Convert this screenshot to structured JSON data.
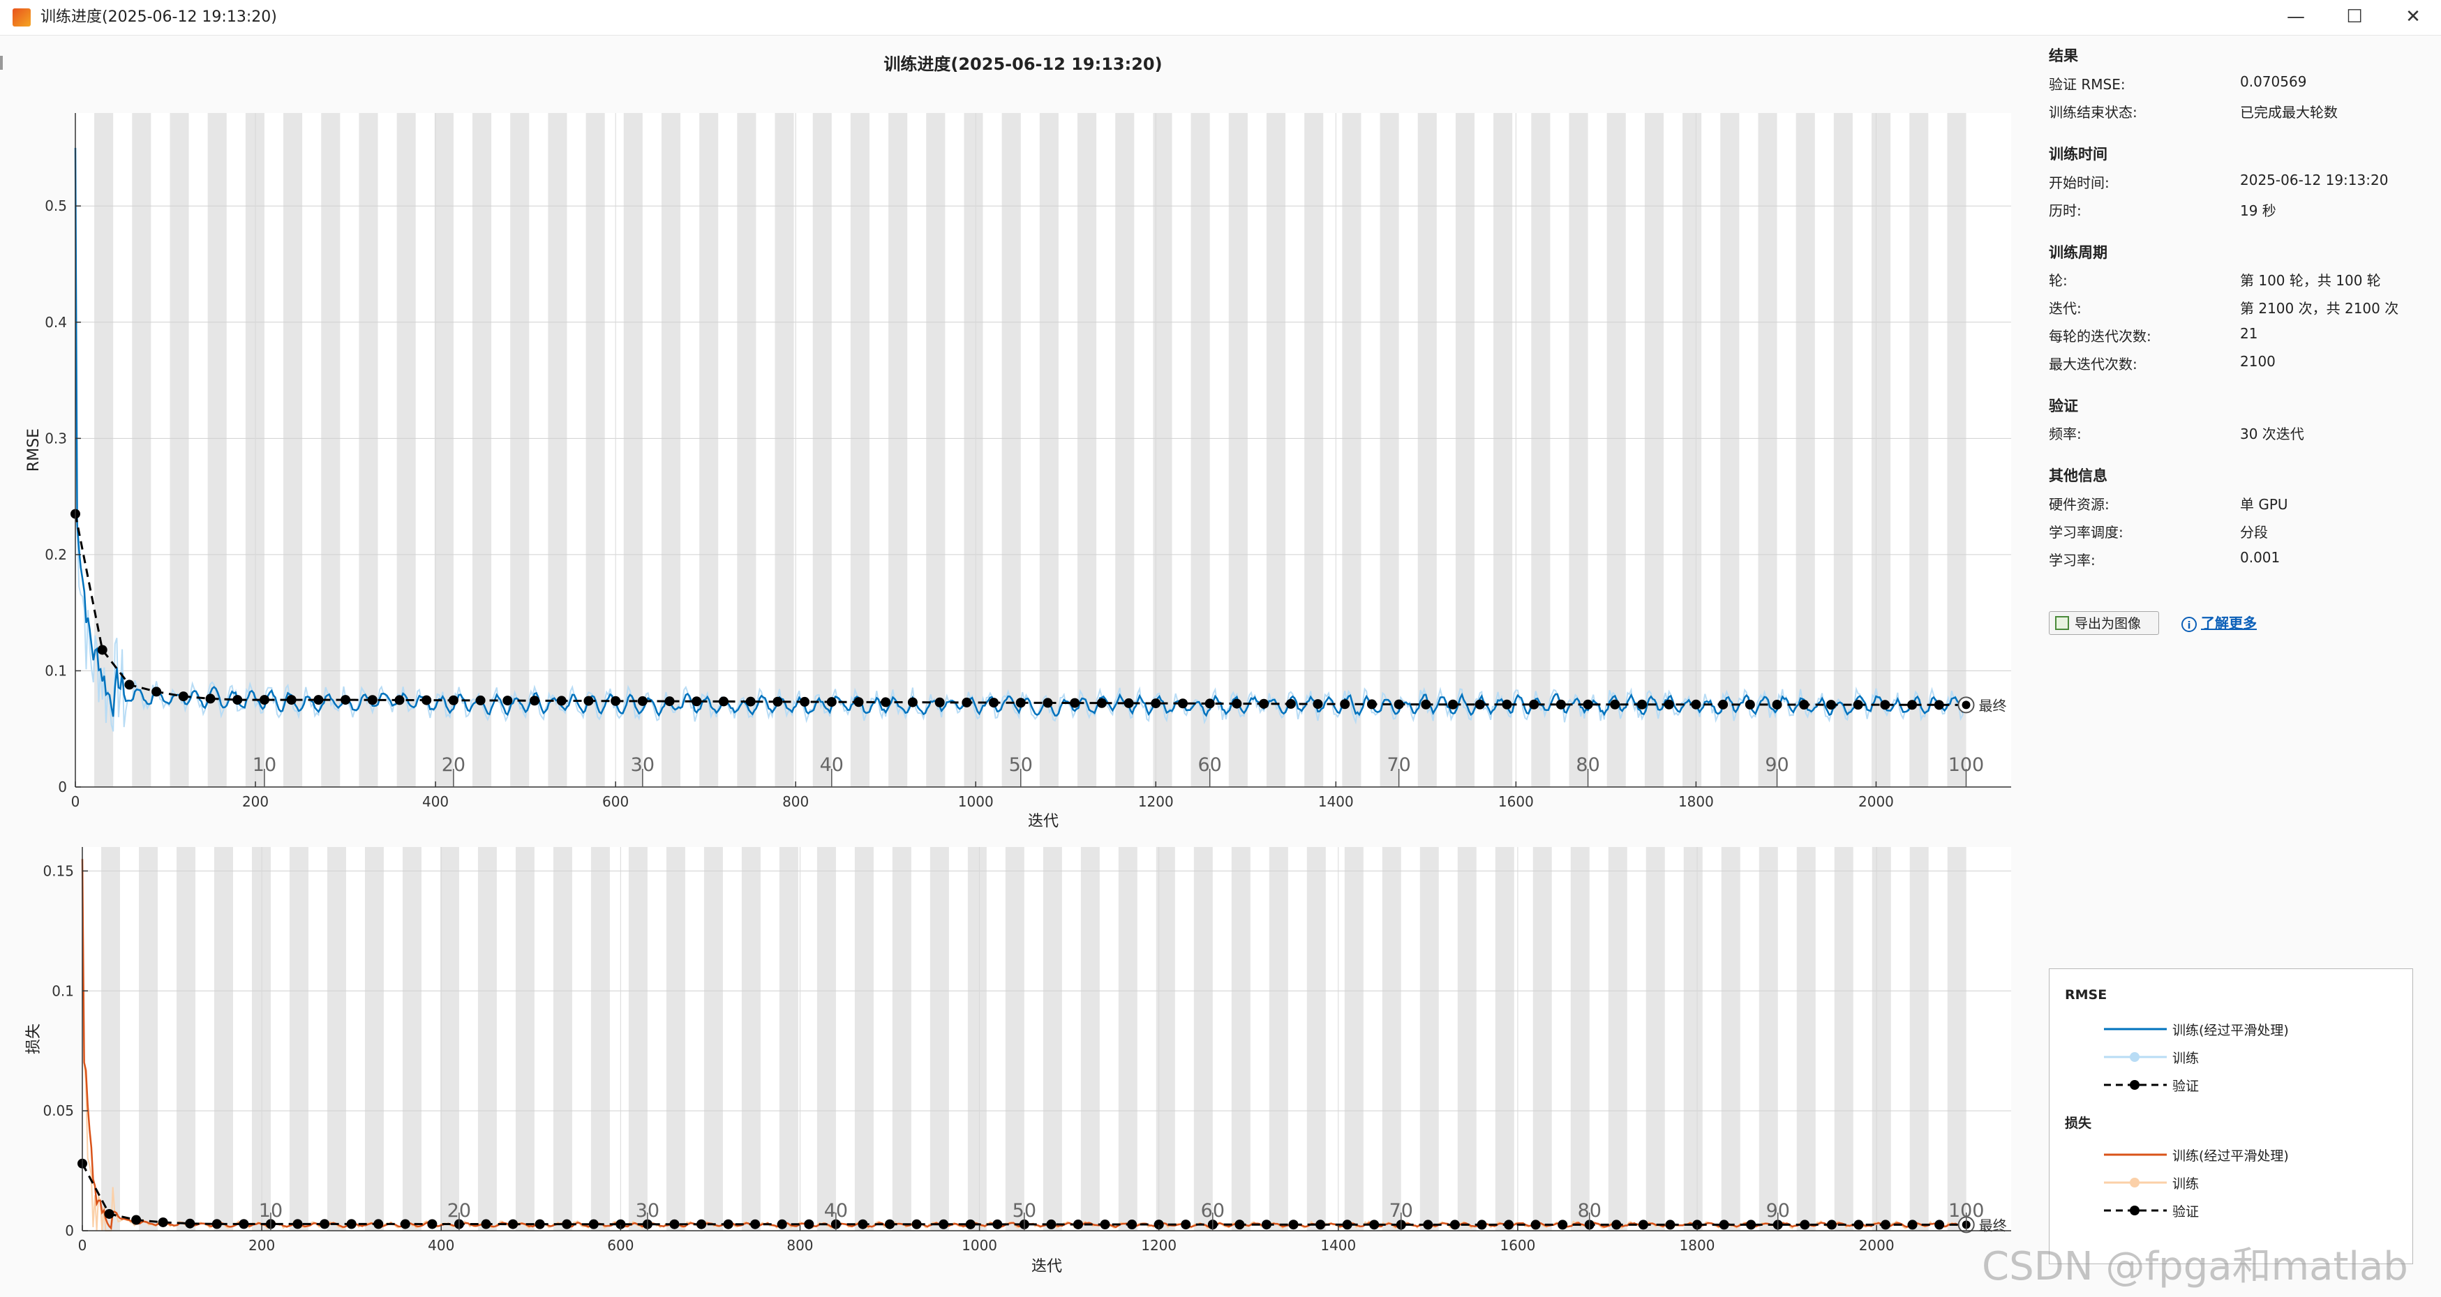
{
  "window": {
    "title": "训练进度(2025-06-12 19:13:20)",
    "controls": [
      "—",
      "☐",
      "✕"
    ]
  },
  "plot": {
    "title": "训练进度(2025-06-12 19:13:20)",
    "final_label": "最终"
  },
  "colors": {
    "rmse_smoothed": "#0072bd",
    "rmse_raw": "#b8dcf5",
    "loss_smoothed": "#d95319",
    "loss_raw": "#fbd0a8",
    "validation": "#000000",
    "epoch_shade": "#e6e6e6",
    "link": "#0b5fb8"
  },
  "chart_data": [
    {
      "type": "line",
      "name": "RMSE",
      "xlabel": "迭代",
      "ylabel": "RMSE",
      "xlim": [
        0,
        2150
      ],
      "ylim": [
        0,
        0.58
      ],
      "x_ticks": [
        0,
        200,
        400,
        600,
        800,
        1000,
        1200,
        1400,
        1600,
        1800,
        2000
      ],
      "y_ticks": [
        0,
        0.1,
        0.2,
        0.3,
        0.4,
        0.5
      ],
      "epoch_labels": [
        10,
        20,
        30,
        40,
        50,
        60,
        70,
        80,
        90,
        100
      ],
      "iterations_per_epoch": 21,
      "grid": true,
      "series": [
        {
          "name": "训练(经过平滑处理)",
          "style": "solid"
        },
        {
          "name": "训练",
          "style": "raw"
        },
        {
          "name": "验证",
          "style": "dashed-markers",
          "x": [
            0,
            30,
            60,
            90,
            120,
            150,
            180,
            300,
            600,
            900,
            1200,
            1500,
            1800,
            2100
          ],
          "y": [
            0.235,
            0.118,
            0.088,
            0.082,
            0.078,
            0.076,
            0.075,
            0.075,
            0.074,
            0.073,
            0.072,
            0.071,
            0.071,
            0.0706
          ]
        }
      ],
      "final_value": 0.070569
    },
    {
      "type": "line",
      "name": "损失",
      "xlabel": "迭代",
      "ylabel": "损失",
      "xlim": [
        0,
        2150
      ],
      "ylim": [
        0,
        0.16
      ],
      "x_ticks": [
        0,
        200,
        400,
        600,
        800,
        1000,
        1200,
        1400,
        1600,
        1800,
        2000
      ],
      "y_ticks": [
        0,
        0.05,
        0.1,
        0.15
      ],
      "epoch_labels": [
        10,
        20,
        30,
        40,
        50,
        60,
        70,
        80,
        90,
        100
      ],
      "iterations_per_epoch": 21,
      "grid": true,
      "series": [
        {
          "name": "训练(经过平滑处理)",
          "style": "solid"
        },
        {
          "name": "训练",
          "style": "raw"
        },
        {
          "name": "验证",
          "style": "dashed-markers",
          "x": [
            0,
            30,
            60,
            90,
            120,
            150,
            300,
            600,
            900,
            1200,
            1500,
            1800,
            2100
          ],
          "y": [
            0.028,
            0.007,
            0.0045,
            0.0035,
            0.003,
            0.0028,
            0.0028,
            0.0027,
            0.0027,
            0.0026,
            0.0025,
            0.0025,
            0.0025
          ]
        }
      ]
    }
  ],
  "info": {
    "results": {
      "title": "结果",
      "rows": [
        {
          "label": "验证 RMSE:",
          "value": "0.070569"
        },
        {
          "label": "训练结束状态:",
          "value": "已完成最大轮数"
        }
      ]
    },
    "time": {
      "title": "训练时间",
      "rows": [
        {
          "label": "开始时间:",
          "value": "2025-06-12 19:13:20"
        },
        {
          "label": "历时:",
          "value": "19 秒"
        }
      ]
    },
    "cycle": {
      "title": "训练周期",
      "rows": [
        {
          "label": "轮:",
          "value": "第 100 轮，共 100 轮"
        },
        {
          "label": "迭代:",
          "value": "第 2100 次，共 2100 次"
        },
        {
          "label": "每轮的迭代次数:",
          "value": "21"
        },
        {
          "label": "最大迭代次数:",
          "value": "2100"
        }
      ]
    },
    "validation": {
      "title": "验证",
      "rows": [
        {
          "label": "频率:",
          "value": "30 次迭代"
        }
      ]
    },
    "other": {
      "title": "其他信息",
      "rows": [
        {
          "label": "硬件资源:",
          "value": "单 GPU"
        },
        {
          "label": "学习率调度:",
          "value": "分段"
        },
        {
          "label": "学习率:",
          "value": "0.001"
        }
      ]
    }
  },
  "buttons": {
    "export": "导出为图像",
    "learn_more": "了解更多"
  },
  "legend": {
    "rmse_title": "RMSE",
    "loss_title": "损失",
    "smoothed": "训练(经过平滑处理)",
    "raw": "训练",
    "validation": "验证"
  },
  "watermark": "CSDN @fpga和matlab"
}
